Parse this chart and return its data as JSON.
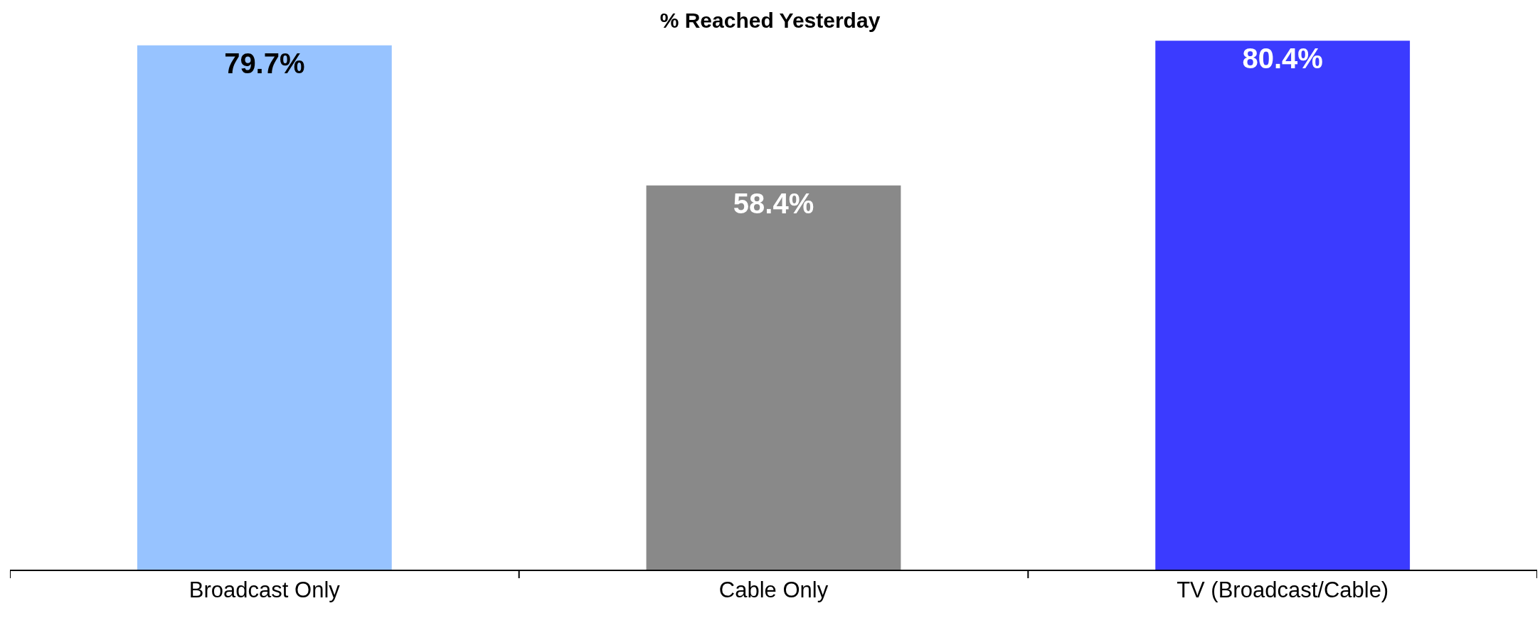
{
  "chart_data": {
    "type": "bar",
    "title": "% Reached Yesterday",
    "categories": [
      "Broadcast Only",
      "Cable Only",
      "TV (Broadcast/Cable)"
    ],
    "values": [
      79.7,
      58.4,
      80.4
    ],
    "colors": [
      "#97c3ff",
      "#898989",
      "#3b3bff"
    ],
    "value_labels": [
      "79.7%",
      "58.4%",
      "80.4%"
    ]
  }
}
